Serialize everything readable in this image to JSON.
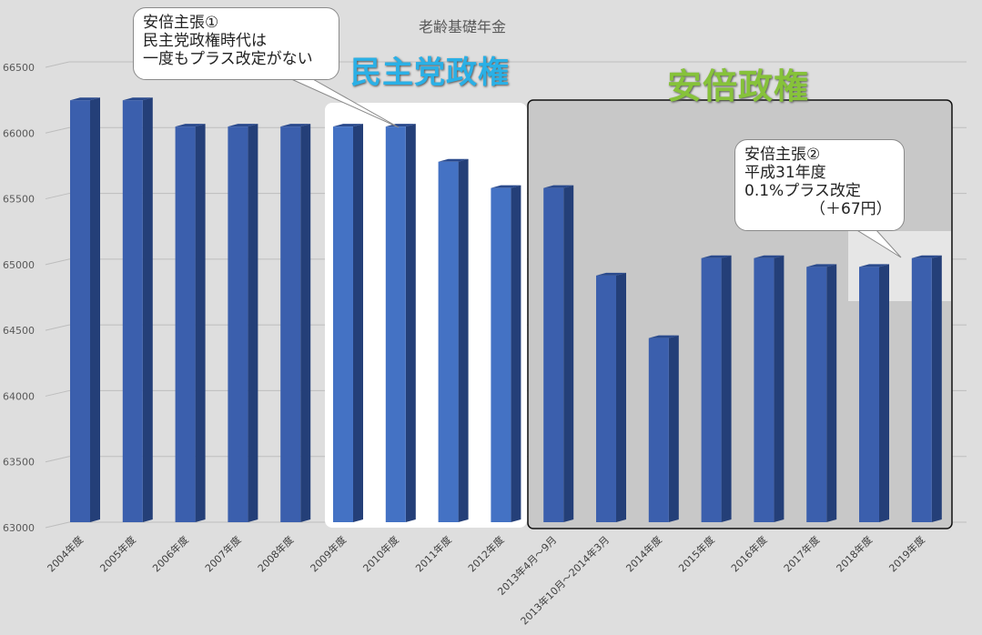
{
  "chart_data": {
    "type": "bar",
    "title": "老齢基礎年金",
    "categories": [
      "2004年度",
      "2005年度",
      "2006年度",
      "2007年度",
      "2008年度",
      "2009年度",
      "2010年度",
      "2011年度",
      "2012年度",
      "2013年4月～9月",
      "2013年10月～2014年3月",
      "2014年度",
      "2015年度",
      "2016年度",
      "2017年度",
      "2018年度",
      "2019年度"
    ],
    "series": [
      {
        "values": [
          66208,
          66208,
          66008,
          66008,
          66008,
          66008,
          66008,
          65741,
          65541,
          65541,
          64875,
          64400,
          65008,
          65008,
          64941,
          64941,
          65008
        ]
      }
    ],
    "ylim": [
      63000,
      66500
    ],
    "yticks": [
      63000,
      63500,
      64000,
      64500,
      65000,
      65500,
      66000,
      66500
    ],
    "grid": true,
    "colors": {
      "bar": "#3b5fad",
      "bar_highlight": "#4472c4",
      "gridline": "#bdbdbd"
    }
  },
  "annotations": {
    "era_dpj": "民主党政権",
    "era_abe": "安倍政権",
    "callout1": [
      "安倍主張①",
      "民主党政権時代は",
      "一度もプラス改定がない"
    ],
    "callout2": [
      "安倍主張②",
      "平成31年度",
      "0.1%プラス改定",
      "（＋67円）"
    ]
  }
}
